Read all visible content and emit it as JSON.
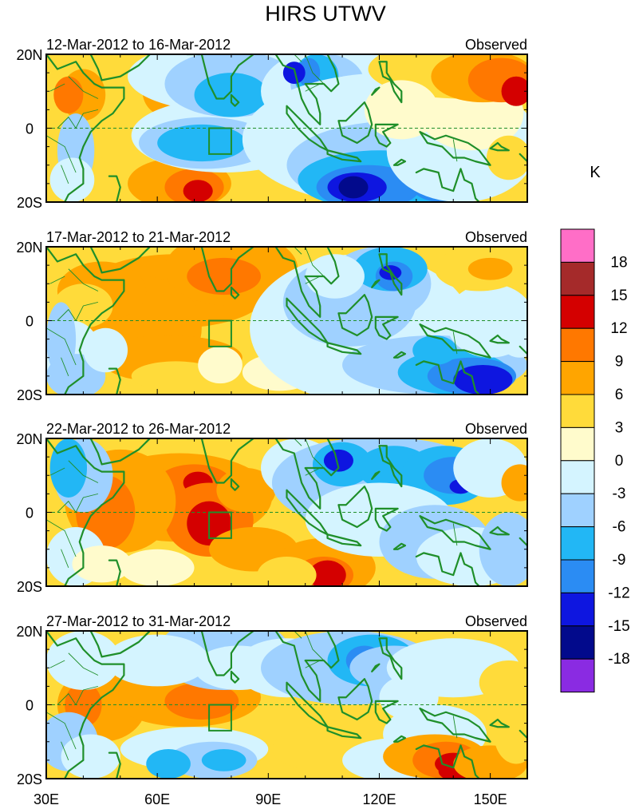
{
  "chart_data": {
    "type": "heatmap",
    "title": "HIRS UTWV",
    "units": "K",
    "x_ticks": [
      "30E",
      "60E",
      "90E",
      "120E",
      "150E"
    ],
    "y_ticks": [
      "20N",
      "0",
      "20S"
    ],
    "x_range_deg": [
      30,
      160
    ],
    "y_range_deg": [
      -20,
      20
    ],
    "colorbar": {
      "levels": [
        "18",
        "15",
        "12",
        "9",
        "6",
        "3",
        "0",
        "-3",
        "-6",
        "-9",
        "-12",
        "-15",
        "-18"
      ],
      "colors": [
        "#ff6ec7",
        "#a52a2a",
        "#d40000",
        "#ff7800",
        "#ffa500",
        "#ffdb3a",
        "#fffbcc",
        "#d4f4ff",
        "#9fd1ff",
        "#22b7f5",
        "#2b8cf3",
        "#0e16e0",
        "#020a8c",
        "#8a2be2"
      ]
    },
    "panels": [
      {
        "period": "12-Mar-2012 to 16-Mar-2012",
        "label": "Observed"
      },
      {
        "period": "17-Mar-2012 to 21-Mar-2012",
        "label": "Observed"
      },
      {
        "period": "22-Mar-2012 to 26-Mar-2012",
        "label": "Observed"
      },
      {
        "period": "27-Mar-2012 to 31-Mar-2012",
        "label": "Observed"
      }
    ]
  }
}
